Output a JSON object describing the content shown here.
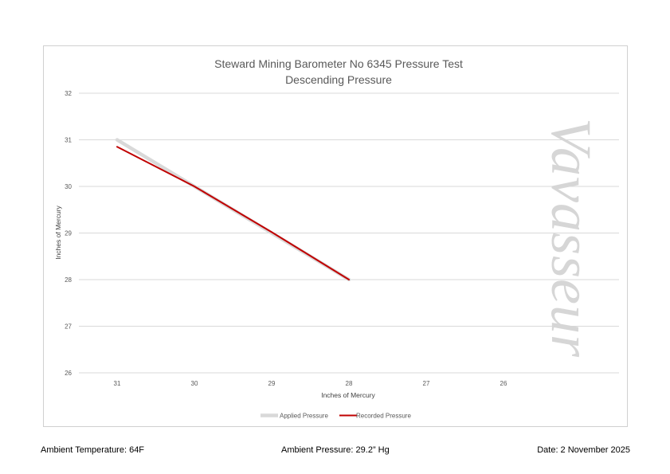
{
  "chart_data": {
    "type": "line",
    "title": "Steward Mining Barometer No 6345 Pressure Test",
    "subtitle": "Descending Pressure",
    "xlabel": "Inches of Mercury",
    "ylabel": "Inches of Mercury",
    "categories": [
      "31",
      "30",
      "29",
      "28",
      "27",
      "26"
    ],
    "y_ticks": [
      "26",
      "27",
      "28",
      "29",
      "30",
      "31",
      "32"
    ],
    "ylim": [
      26,
      32
    ],
    "grid": true,
    "legend_position": "bottom",
    "series": [
      {
        "name": "Applied Pressure",
        "color": "#d9d9d9",
        "values": [
          31,
          30,
          29,
          28,
          null,
          null
        ]
      },
      {
        "name": "Recorded Pressure",
        "color": "#c00000",
        "values": [
          30.85,
          30,
          29.02,
          28,
          null,
          null
        ]
      }
    ]
  },
  "watermark": "Vavasseur",
  "footer": {
    "temperature": "Ambient Temperature: 64F",
    "pressure": "Ambient Pressure: 29.2” Hg",
    "date": "Date: 2 November 2025"
  }
}
